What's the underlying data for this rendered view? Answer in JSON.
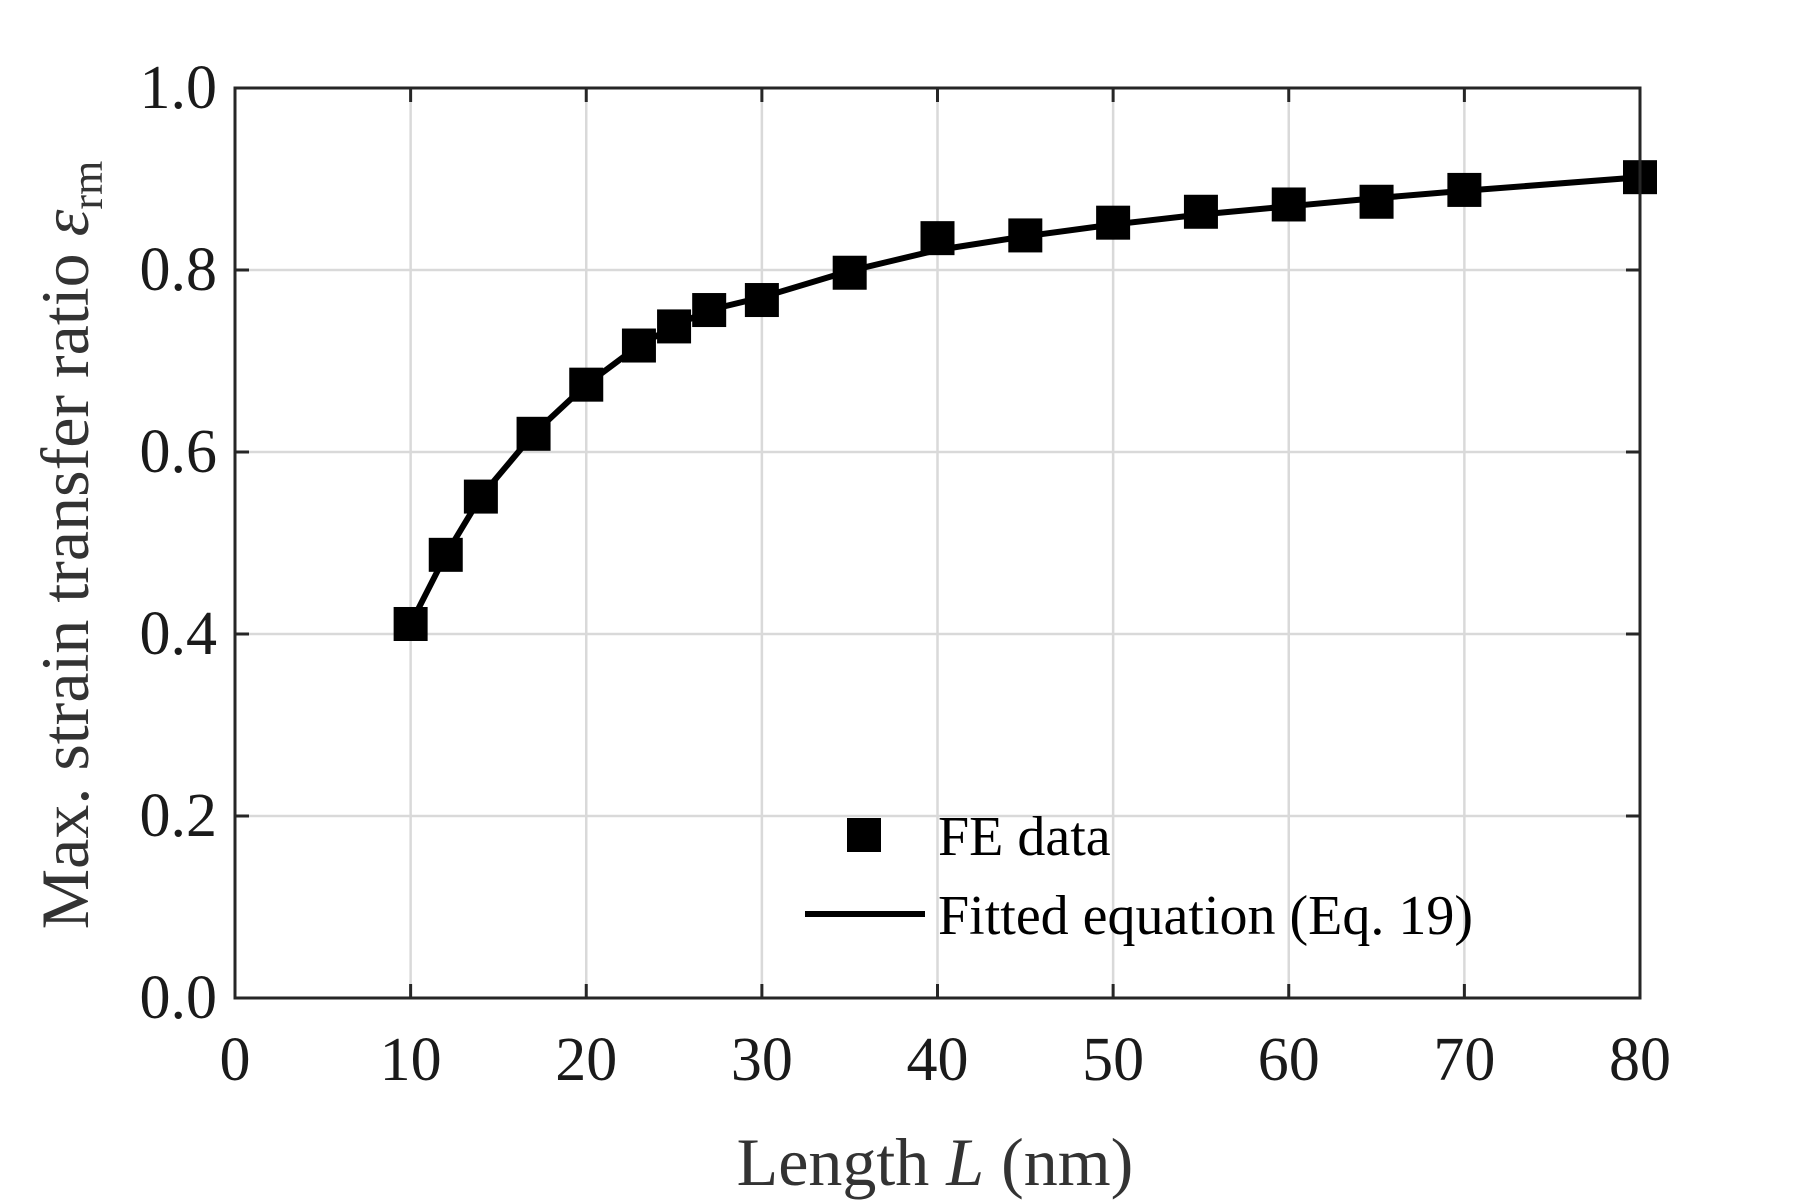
{
  "chart_data": {
    "type": "line",
    "xlabel_parts": [
      "Length ",
      "L",
      " (nm)"
    ],
    "ylabel_parts": [
      "Max. strain transfer ratio ",
      "ε",
      "rm"
    ],
    "xlim": [
      0,
      80
    ],
    "ylim": [
      0,
      1
    ],
    "x_ticks": [
      "0",
      "10",
      "20",
      "30",
      "40",
      "50",
      "60",
      "70",
      "80"
    ],
    "y_ticks": [
      "0.0",
      "0.2",
      "0.4",
      "0.6",
      "0.8",
      "1.0"
    ],
    "grid": true,
    "legend_position": "bottom-right",
    "colors": {
      "series": "#000000",
      "grid": "#d9d9d9",
      "axes": "#262626"
    },
    "series": [
      {
        "name": "FE data",
        "marker": "square",
        "x": [
          10,
          12,
          14,
          17,
          20,
          23,
          25,
          27,
          30,
          35,
          40,
          45,
          50,
          55,
          60,
          65,
          70,
          80
        ],
        "y": [
          0.411,
          0.487,
          0.551,
          0.62,
          0.674,
          0.717,
          0.738,
          0.756,
          0.767,
          0.797,
          0.835,
          0.838,
          0.852,
          0.864,
          0.872,
          0.875,
          0.888,
          0.902
        ]
      },
      {
        "name": "Fitted equation (Eq. 19)",
        "marker": "none",
        "x": [
          10,
          12,
          14,
          17,
          20,
          23,
          25,
          27,
          30,
          35,
          40,
          45,
          50,
          55,
          60,
          65,
          70,
          80
        ],
        "y": [
          0.411,
          0.487,
          0.551,
          0.62,
          0.674,
          0.717,
          0.738,
          0.756,
          0.77,
          0.799,
          0.822,
          0.837,
          0.85,
          0.861,
          0.87,
          0.879,
          0.887,
          0.902
        ]
      }
    ]
  }
}
